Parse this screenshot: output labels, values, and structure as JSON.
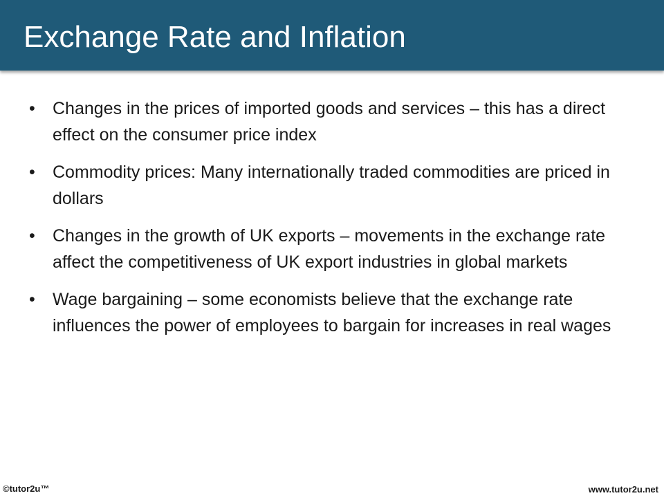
{
  "slide": {
    "title": "Exchange Rate and Inflation",
    "bullet_glyph": "•",
    "bullets": [
      "Changes in the prices of imported goods and services – this has a direct effect on the consumer price index",
      "Commodity prices: Many internationally traded commodities are priced in dollars",
      "Changes in the growth of UK exports – movements in the exchange rate affect the competitiveness of UK export industries in global markets",
      "Wage bargaining – some economists believe that the exchange rate influences the power of employees to bargain for increases in real wages"
    ]
  },
  "footer": {
    "copyright": "©tutor2u™",
    "website": "www.tutor2u.net"
  },
  "colors": {
    "title_bar": "#1f5a78",
    "title_text": "#ffffff",
    "body_text": "#1a1a1a"
  }
}
